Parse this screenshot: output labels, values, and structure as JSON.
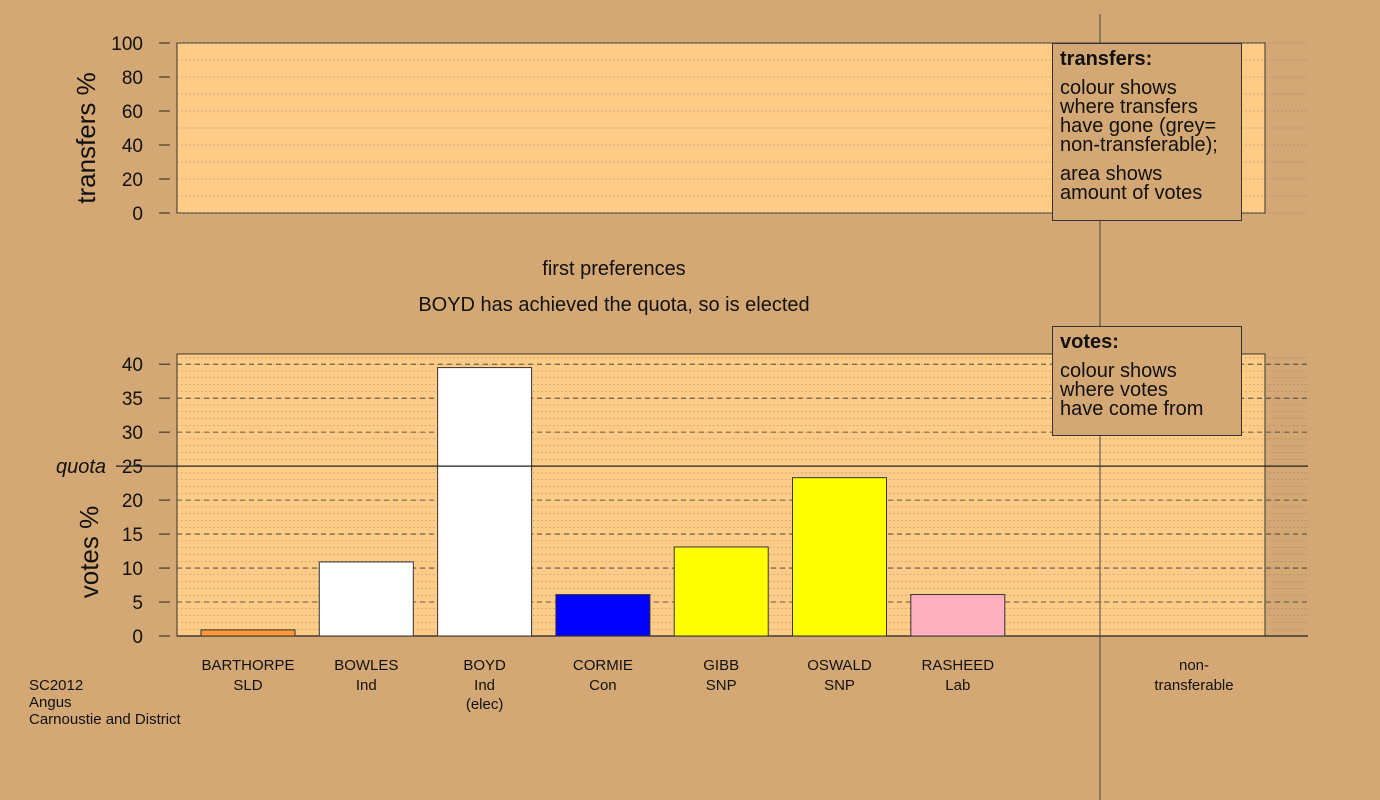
{
  "footer": {
    "line1": "SC2012",
    "line2": "Angus",
    "line3": "Carnoustie and District"
  },
  "stage_title": "first preferences",
  "stage_message": "BOYD has achieved the quota, so is elected",
  "legends": {
    "transfers": {
      "title": "transfers:",
      "lines_a": [
        "colour shows",
        "where transfers",
        "have gone (grey=",
        "non-transferable);"
      ],
      "lines_b": [
        "area shows",
        "amount of votes"
      ]
    },
    "votes": {
      "title": "votes:",
      "lines": [
        "colour shows",
        "where votes",
        "have come from"
      ]
    }
  },
  "chart_data": [
    {
      "type": "bar",
      "ylabel": "transfers %",
      "ylim": [
        0,
        100
      ],
      "yticks": [
        0,
        20,
        40,
        60,
        80,
        100
      ],
      "values": []
    },
    {
      "type": "bar",
      "ylabel": "votes %",
      "ylim": [
        0,
        41.5
      ],
      "yticks": [
        0,
        5,
        10,
        15,
        20,
        25,
        30,
        35,
        40
      ],
      "quota": {
        "label": "quota",
        "value": 25
      },
      "categories": [
        {
          "name": "BARTHORPE",
          "party": "SLD",
          "note": "",
          "value": 0.9,
          "color": "#ff9933"
        },
        {
          "name": "BOWLES",
          "party": "Ind",
          "note": "",
          "value": 10.9,
          "color": "#ffffff"
        },
        {
          "name": "BOYD",
          "party": "Ind",
          "note": "(elec)",
          "value": 39.5,
          "color": "#ffffff"
        },
        {
          "name": "CORMIE",
          "party": "Con",
          "note": "",
          "value": 6.1,
          "color": "#0000ff"
        },
        {
          "name": "GIBB",
          "party": "SNP",
          "note": "",
          "value": 13.1,
          "color": "#ffff00"
        },
        {
          "name": "OSWALD",
          "party": "SNP",
          "note": "",
          "value": 23.3,
          "color": "#ffff00"
        },
        {
          "name": "RASHEED",
          "party": "Lab",
          "note": "",
          "value": 6.1,
          "color": "#ffb0c0"
        }
      ],
      "nontransferable": {
        "line1": "non-",
        "line2": "transferable",
        "value": 0
      }
    }
  ]
}
